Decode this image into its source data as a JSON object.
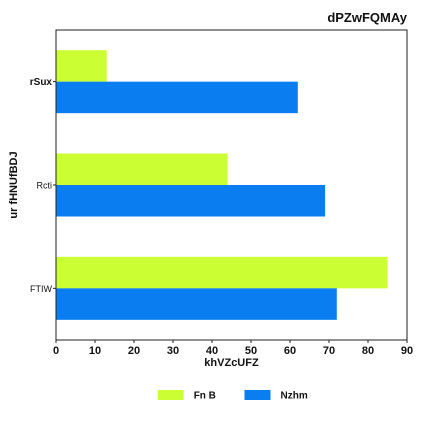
{
  "chart_data": {
    "type": "bar",
    "orientation": "horizontal",
    "title": "dPZwFQMAy",
    "xlabel": "khVZcUFZ",
    "ylabel": "ur fHNUfBDJ",
    "xlim": [
      0,
      90
    ],
    "xticks": [
      0,
      10,
      20,
      30,
      40,
      50,
      60,
      70,
      80,
      90
    ],
    "categories": [
      "rSux",
      "Rcti",
      "FTIW"
    ],
    "emphasized_category": "rSux",
    "series": [
      {
        "name": "Fn B",
        "color": "#ccff33",
        "values": [
          13,
          44,
          85
        ]
      },
      {
        "name": "Nzhm",
        "color": "#0a7ef0",
        "values": [
          62,
          69,
          72
        ]
      }
    ],
    "grid": false,
    "legend_position": "bottom-center"
  }
}
